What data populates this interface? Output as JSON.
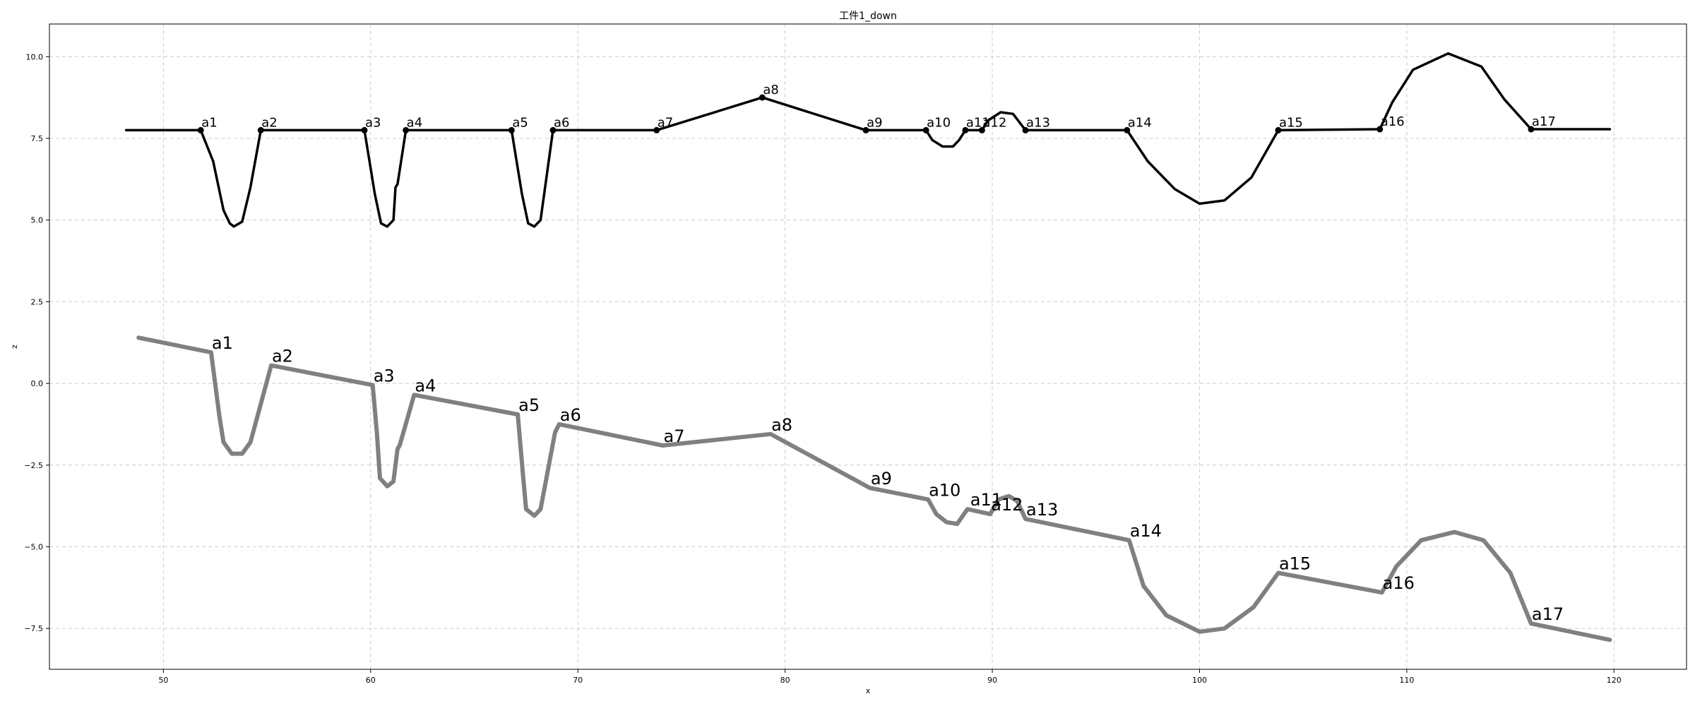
{
  "chart_data": {
    "type": "line",
    "title": "工件1_down",
    "xlabel": "x",
    "ylabel": "z",
    "xlim": [
      44.5,
      123.5
    ],
    "ylim": [
      -8.75,
      11.0
    ],
    "xticks": [
      50,
      60,
      70,
      80,
      90,
      100,
      110,
      120
    ],
    "yticks": [
      -7.5,
      -5.0,
      -2.5,
      0.0,
      2.5,
      5.0,
      7.5,
      10.0
    ],
    "xtick_labels": [
      "50",
      "60",
      "70",
      "80",
      "90",
      "100",
      "110",
      "120"
    ],
    "ytick_labels": [
      "−7.5",
      "−5.0",
      "−2.5",
      "0.0",
      "2.5",
      "5.0",
      "7.5",
      "10.0"
    ],
    "grid": true,
    "series": [
      {
        "color": "#000000",
        "markers": true,
        "points": [
          [
            48.2,
            7.75
          ],
          [
            51.8,
            7.75
          ],
          [
            52.4,
            6.8
          ],
          [
            52.9,
            5.3
          ],
          [
            53.2,
            4.9
          ],
          [
            53.4,
            4.8
          ],
          [
            53.8,
            4.95
          ],
          [
            54.2,
            6.0
          ],
          [
            54.7,
            7.75
          ],
          [
            59.7,
            7.75
          ],
          [
            60.2,
            5.8
          ],
          [
            60.5,
            4.9
          ],
          [
            60.8,
            4.8
          ],
          [
            61.1,
            5.0
          ],
          [
            61.2,
            6.0
          ],
          [
            61.3,
            6.1
          ],
          [
            61.7,
            7.75
          ],
          [
            66.8,
            7.75
          ],
          [
            67.3,
            5.8
          ],
          [
            67.6,
            4.9
          ],
          [
            67.9,
            4.8
          ],
          [
            68.2,
            5.0
          ],
          [
            68.8,
            7.75
          ],
          [
            73.8,
            7.75
          ],
          [
            78.9,
            8.75
          ],
          [
            83.9,
            7.75
          ],
          [
            86.8,
            7.75
          ],
          [
            87.1,
            7.45
          ],
          [
            87.6,
            7.25
          ],
          [
            88.1,
            7.25
          ],
          [
            88.4,
            7.45
          ],
          [
            88.7,
            7.75
          ],
          [
            89.5,
            7.75
          ],
          [
            89.8,
            8.05
          ],
          [
            90.4,
            8.3
          ],
          [
            91.0,
            8.25
          ],
          [
            91.3,
            8.0
          ],
          [
            91.6,
            7.75
          ],
          [
            96.5,
            7.75
          ],
          [
            97.5,
            6.8
          ],
          [
            98.8,
            5.95
          ],
          [
            100.0,
            5.5
          ],
          [
            101.2,
            5.6
          ],
          [
            102.5,
            6.3
          ],
          [
            103.8,
            7.75
          ],
          [
            108.7,
            7.78
          ],
          [
            109.3,
            8.6
          ],
          [
            110.3,
            9.6
          ],
          [
            112.0,
            10.1
          ],
          [
            113.6,
            9.7
          ],
          [
            114.7,
            8.7
          ],
          [
            116.0,
            7.78
          ],
          [
            119.8,
            7.78
          ]
        ],
        "labels": [
          {
            "text": "a1",
            "x": 51.8,
            "y": 7.75
          },
          {
            "text": "a2",
            "x": 54.7,
            "y": 7.75
          },
          {
            "text": "a3",
            "x": 59.7,
            "y": 7.75
          },
          {
            "text": "a4",
            "x": 61.7,
            "y": 7.75
          },
          {
            "text": "a5",
            "x": 66.8,
            "y": 7.75
          },
          {
            "text": "a6",
            "x": 68.8,
            "y": 7.75
          },
          {
            "text": "a7",
            "x": 73.8,
            "y": 7.75
          },
          {
            "text": "a8",
            "x": 78.9,
            "y": 8.75
          },
          {
            "text": "a9",
            "x": 83.9,
            "y": 7.75
          },
          {
            "text": "a10",
            "x": 86.8,
            "y": 7.75
          },
          {
            "text": "a11",
            "x": 88.7,
            "y": 7.75
          },
          {
            "text": "a12",
            "x": 89.5,
            "y": 7.75
          },
          {
            "text": "a13",
            "x": 91.6,
            "y": 7.75
          },
          {
            "text": "a14",
            "x": 96.5,
            "y": 7.75
          },
          {
            "text": "a15",
            "x": 103.8,
            "y": 7.75
          },
          {
            "text": "a16",
            "x": 108.7,
            "y": 7.78
          },
          {
            "text": "a17",
            "x": 116.0,
            "y": 7.78
          }
        ]
      },
      {
        "color": "#808080",
        "markers": false,
        "points": [
          [
            48.8,
            1.4
          ],
          [
            52.3,
            0.95
          ],
          [
            52.7,
            -1.0
          ],
          [
            52.9,
            -1.8
          ],
          [
            53.3,
            -2.15
          ],
          [
            53.8,
            -2.15
          ],
          [
            54.2,
            -1.8
          ],
          [
            55.2,
            0.55
          ],
          [
            60.1,
            -0.05
          ],
          [
            60.3,
            -1.5
          ],
          [
            60.45,
            -2.9
          ],
          [
            60.8,
            -3.15
          ],
          [
            61.1,
            -3.0
          ],
          [
            61.3,
            -2.0
          ],
          [
            61.4,
            -1.9
          ],
          [
            62.1,
            -0.35
          ],
          [
            67.1,
            -0.95
          ],
          [
            67.35,
            -2.8
          ],
          [
            67.5,
            -3.85
          ],
          [
            67.9,
            -4.05
          ],
          [
            68.2,
            -3.85
          ],
          [
            68.9,
            -1.5
          ],
          [
            69.1,
            -1.25
          ],
          [
            74.1,
            -1.9
          ],
          [
            79.3,
            -1.55
          ],
          [
            84.1,
            -3.2
          ],
          [
            86.9,
            -3.55
          ],
          [
            87.3,
            -4.0
          ],
          [
            87.8,
            -4.25
          ],
          [
            88.3,
            -4.3
          ],
          [
            88.8,
            -3.85
          ],
          [
            89.9,
            -4.0
          ],
          [
            90.3,
            -3.55
          ],
          [
            90.8,
            -3.45
          ],
          [
            91.2,
            -3.6
          ],
          [
            91.6,
            -4.15
          ],
          [
            96.6,
            -4.8
          ],
          [
            97.3,
            -6.2
          ],
          [
            98.4,
            -7.1
          ],
          [
            100.0,
            -7.6
          ],
          [
            101.2,
            -7.5
          ],
          [
            102.6,
            -6.85
          ],
          [
            103.8,
            -5.8
          ],
          [
            108.8,
            -6.4
          ],
          [
            109.5,
            -5.6
          ],
          [
            110.7,
            -4.8
          ],
          [
            112.3,
            -4.55
          ],
          [
            113.7,
            -4.8
          ],
          [
            115.0,
            -5.8
          ],
          [
            116.0,
            -7.35
          ],
          [
            119.8,
            -7.85
          ]
        ],
        "labels": [
          {
            "text": "a1",
            "x": 52.3,
            "y": 0.95
          },
          {
            "text": "a2",
            "x": 55.2,
            "y": 0.55
          },
          {
            "text": "a3",
            "x": 60.1,
            "y": -0.05
          },
          {
            "text": "a4",
            "x": 62.1,
            "y": -0.35
          },
          {
            "text": "a5",
            "x": 67.1,
            "y": -0.95
          },
          {
            "text": "a6",
            "x": 69.1,
            "y": -1.25
          },
          {
            "text": "a7",
            "x": 74.1,
            "y": -1.9
          },
          {
            "text": "a8",
            "x": 79.3,
            "y": -1.55
          },
          {
            "text": "a9",
            "x": 84.1,
            "y": -3.2
          },
          {
            "text": "a10",
            "x": 86.9,
            "y": -3.55
          },
          {
            "text": "a11",
            "x": 88.9,
            "y": -3.85
          },
          {
            "text": "a12",
            "x": 89.9,
            "y": -4.0
          },
          {
            "text": "a13",
            "x": 91.6,
            "y": -4.15
          },
          {
            "text": "a14",
            "x": 96.6,
            "y": -4.8
          },
          {
            "text": "a15",
            "x": 103.8,
            "y": -5.8
          },
          {
            "text": "a16",
            "x": 108.8,
            "y": -6.4
          },
          {
            "text": "a17",
            "x": 116.0,
            "y": -7.35
          }
        ]
      }
    ]
  }
}
